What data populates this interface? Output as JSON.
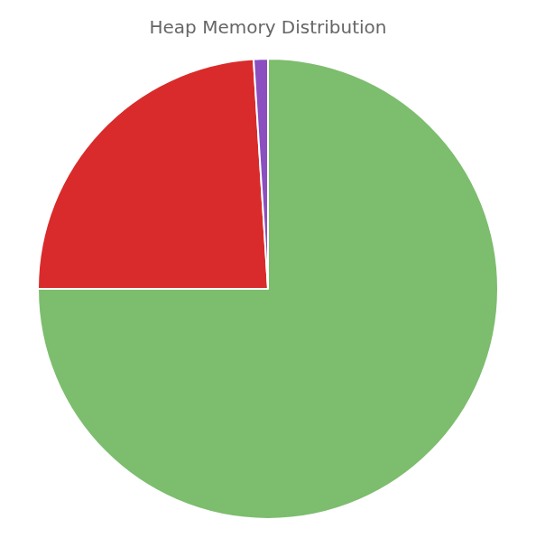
{
  "chart_data": {
    "type": "pie",
    "title": "Heap Memory Distribution",
    "values": [
      75.0,
      24.0,
      1.0
    ],
    "colors": [
      "#7DBD6E",
      "#D92B2B",
      "#8B4FBF"
    ],
    "legend": false,
    "data_labels": false
  }
}
